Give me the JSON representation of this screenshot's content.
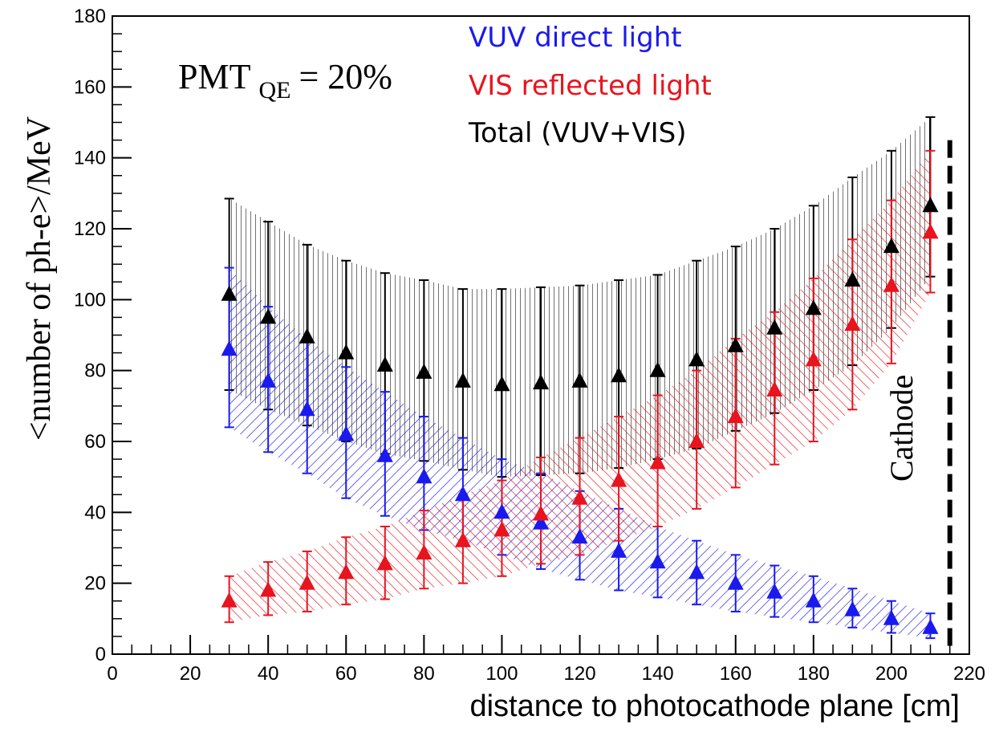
{
  "chart_data": {
    "type": "scatter",
    "xlabel": "distance to photocathode plane [cm]",
    "ylabel": "<number of ph-e>/MeV",
    "xlim": [
      0,
      220
    ],
    "ylim": [
      0,
      180
    ],
    "x_ticks": [
      0,
      20,
      40,
      60,
      80,
      100,
      120,
      140,
      160,
      180,
      200,
      220
    ],
    "y_ticks": [
      0,
      20,
      40,
      60,
      80,
      100,
      120,
      140,
      160,
      180
    ],
    "grid": false,
    "legend_placement": "top-right",
    "annotation": {
      "pmt_prefix": "PMT",
      "pmt_subscript": "QE",
      "pmt_value": "= 20%",
      "cathode_label": "Cathode",
      "cathode_x": 215
    },
    "x": [
      30,
      40,
      50,
      60,
      70,
      80,
      90,
      100,
      110,
      120,
      130,
      140,
      150,
      160,
      170,
      180,
      190,
      200,
      210
    ],
    "series": [
      {
        "name": "VUV direct light",
        "color": "#1a1aee",
        "values": [
          86,
          77,
          69,
          62,
          56,
          50,
          45,
          40,
          37,
          33,
          29,
          26,
          23,
          20,
          17.5,
          15,
          12.5,
          10,
          7.5
        ],
        "err_low": [
          22,
          20,
          18,
          18,
          17,
          15,
          13,
          12,
          13,
          12,
          11,
          10,
          9,
          8,
          7,
          6,
          5,
          4,
          3
        ],
        "err_high": [
          23,
          21,
          20,
          19,
          18,
          17,
          16,
          15,
          14,
          13,
          12,
          10,
          9,
          8,
          7.5,
          7,
          6,
          5,
          4
        ]
      },
      {
        "name": "VIS reflected light",
        "color": "#e8141e",
        "values": [
          15,
          18,
          20,
          23,
          25.5,
          28.5,
          32,
          35,
          39.5,
          44,
          49,
          54,
          60,
          67,
          74.5,
          83,
          93,
          104,
          119
        ],
        "err_low": [
          6,
          7,
          8,
          9,
          10,
          10,
          12,
          13,
          14,
          16,
          17,
          18,
          19,
          20,
          21,
          23,
          24,
          22,
          17
        ],
        "err_high": [
          7,
          8,
          9,
          10,
          10.5,
          12,
          13,
          14,
          16,
          17,
          18,
          19,
          20,
          22,
          22,
          23,
          24,
          24,
          23
        ]
      },
      {
        "name": "Total (VUV+VIS)",
        "color": "#000000",
        "values": [
          101.5,
          95,
          89.5,
          85,
          81.5,
          79.5,
          77,
          76,
          76.5,
          77,
          78.5,
          80,
          83,
          87,
          92,
          97.5,
          105.5,
          115,
          126.5
        ],
        "err_low": [
          27,
          26,
          25,
          25,
          25,
          25,
          25,
          26,
          26,
          26,
          26,
          25,
          25,
          24,
          24,
          23,
          24,
          23,
          20
        ],
        "err_high": [
          27,
          27,
          26,
          26,
          26,
          26,
          26,
          27,
          27,
          27,
          27,
          27,
          28,
          28,
          28,
          29,
          29,
          27,
          25
        ]
      }
    ]
  }
}
